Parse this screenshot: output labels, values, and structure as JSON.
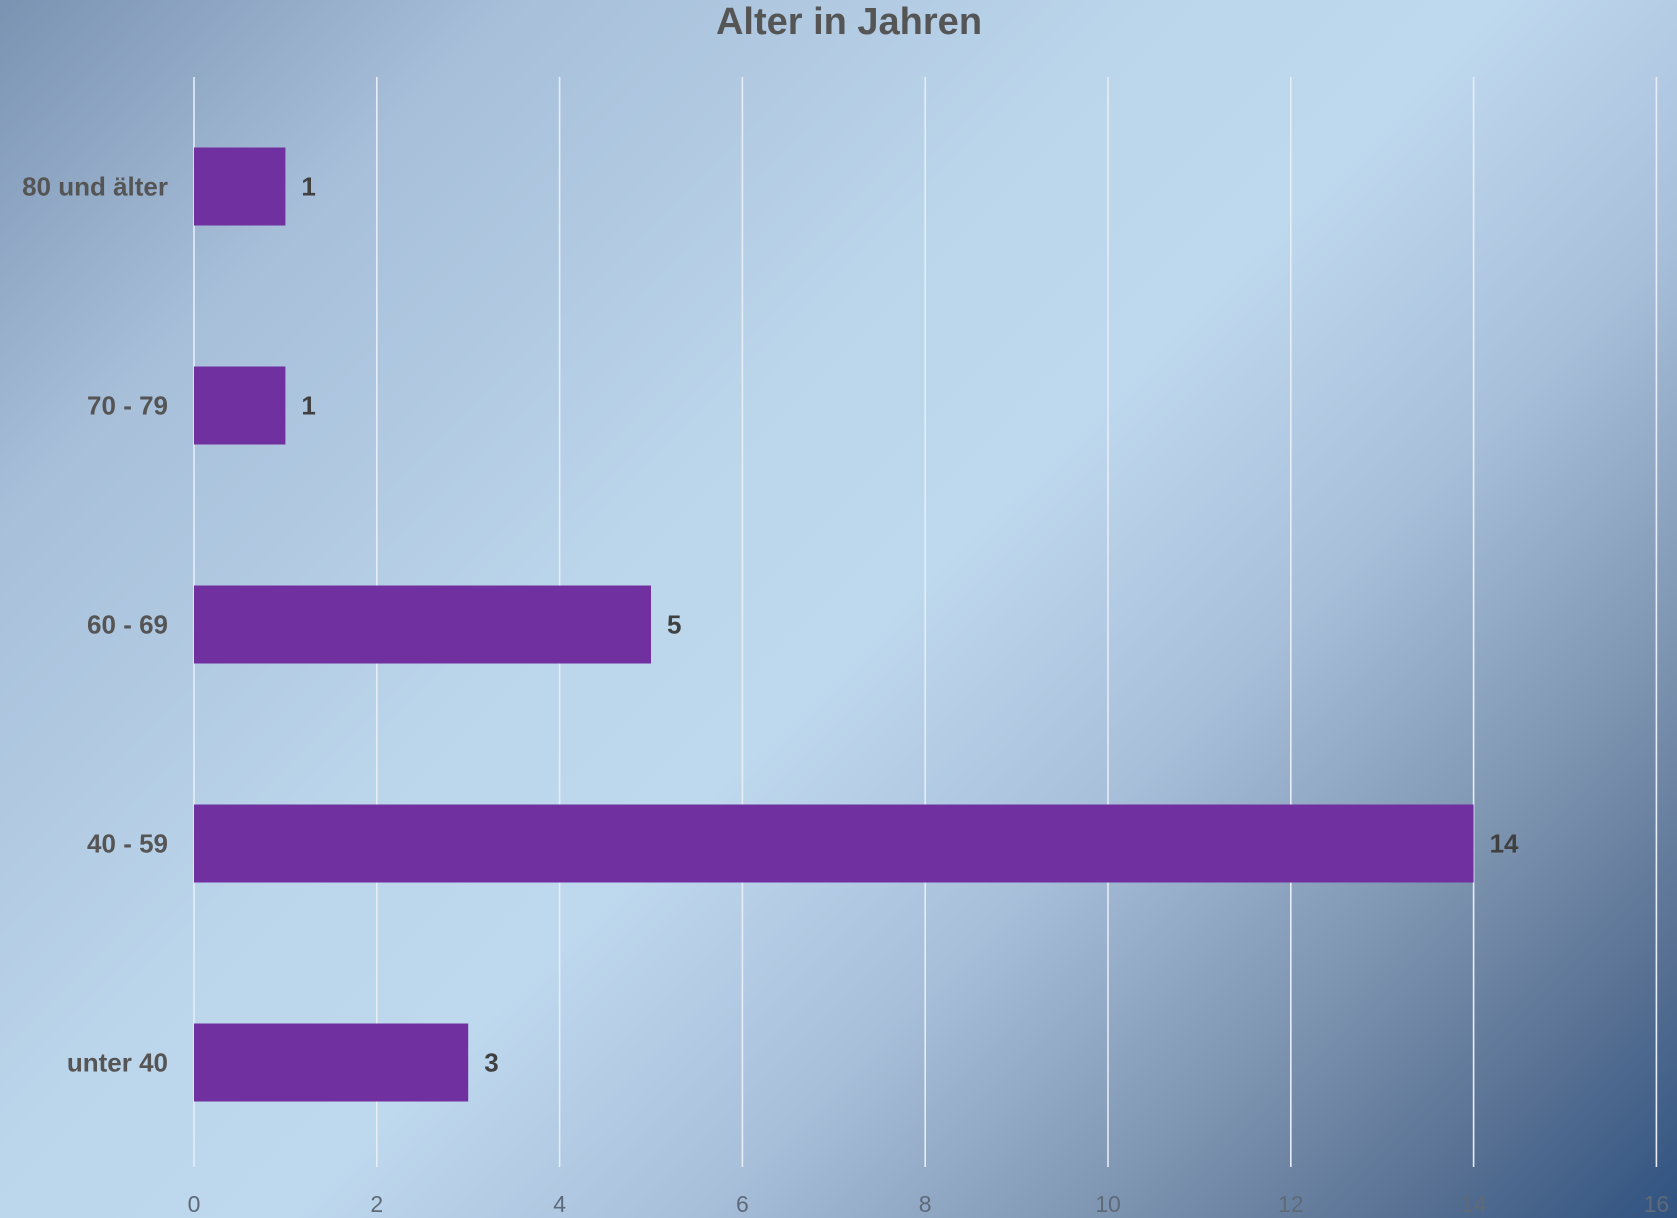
{
  "chart_data": {
    "type": "bar",
    "orientation": "horizontal",
    "title": "Alter in Jahren",
    "categories": [
      "80 und älter",
      "70 - 79",
      "60 - 69",
      "40 - 59",
      "unter 40"
    ],
    "values": [
      1,
      1,
      5,
      14,
      3
    ],
    "x_ticks": [
      "0",
      "2",
      "4",
      "6",
      "8",
      "10",
      "12",
      "14",
      "16"
    ],
    "xlim": [
      0,
      16
    ],
    "grid": true,
    "legend": "none",
    "bar_color": "#7030a0",
    "data_labels": true
  }
}
